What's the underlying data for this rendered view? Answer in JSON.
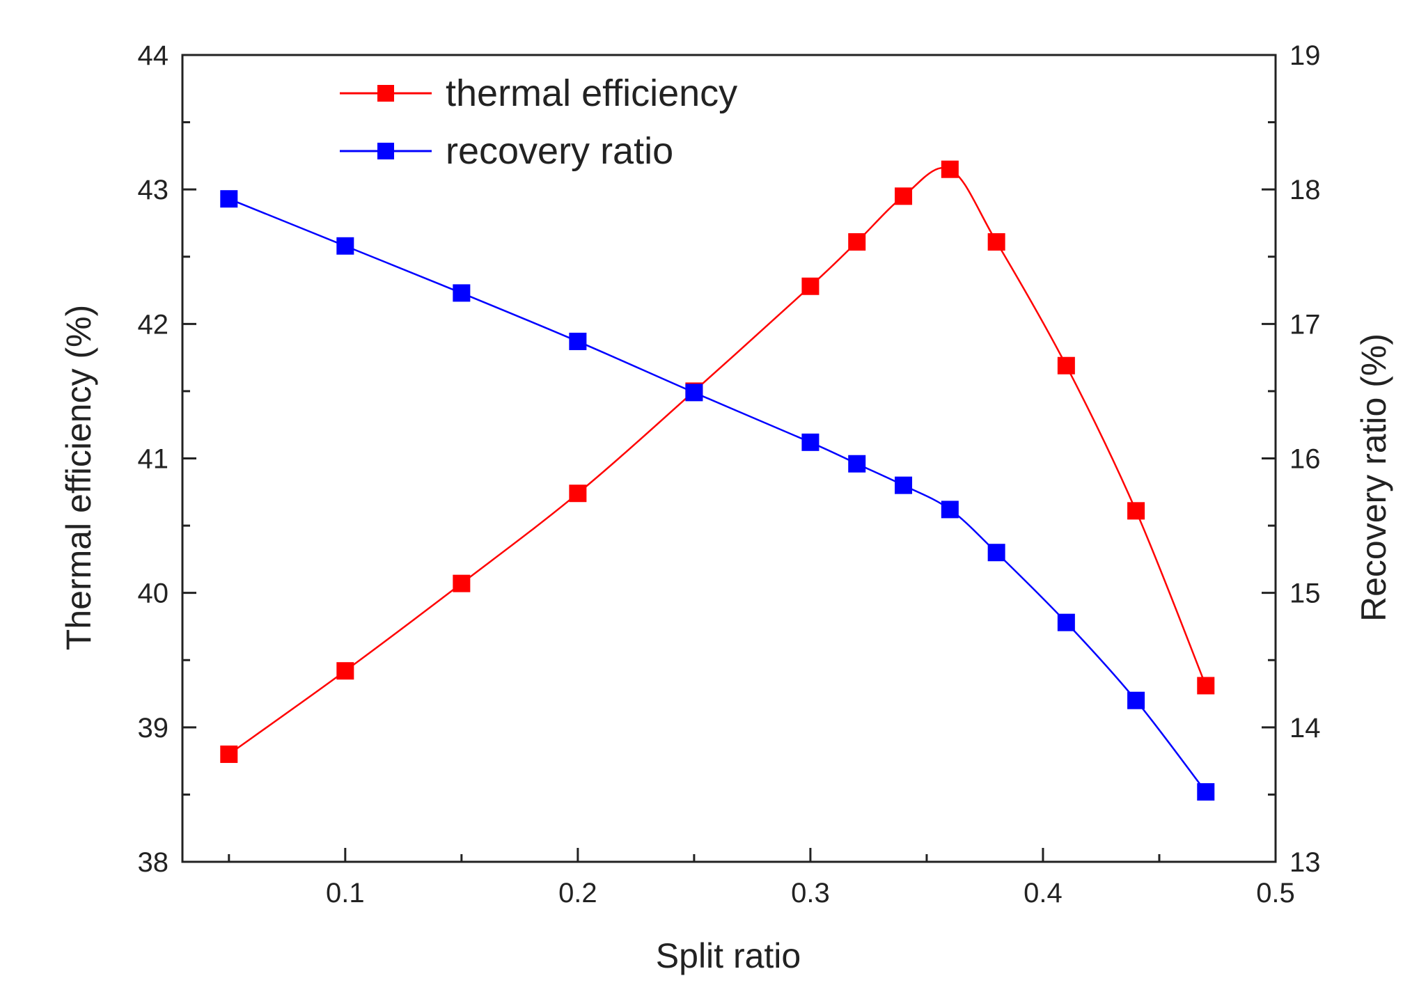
{
  "chart_data": {
    "type": "line",
    "xlabel": "Split ratio",
    "xlim": [
      0.03,
      0.5
    ],
    "xticks": [
      0.1,
      0.2,
      0.3,
      0.4,
      0.5
    ],
    "xtick_labels": [
      "0.1",
      "0.2",
      "0.3",
      "0.4",
      "0.5"
    ],
    "y_left": {
      "label": "Thermal efficiency (%)",
      "ylim": [
        38,
        44
      ],
      "ticks": [
        38,
        39,
        40,
        41,
        42,
        43,
        44
      ],
      "tick_labels": [
        "38",
        "39",
        "40",
        "41",
        "42",
        "43",
        "44"
      ]
    },
    "y_right": {
      "label": "Recovery ratio (%)",
      "ylim": [
        13,
        19
      ],
      "ticks": [
        13,
        14,
        15,
        16,
        17,
        18,
        19
      ],
      "tick_labels": [
        "13",
        "14",
        "15",
        "16",
        "17",
        "18",
        "19"
      ]
    },
    "series": [
      {
        "name": "thermal efficiency",
        "axis": "left",
        "color": "#ff0000",
        "x": [
          0.05,
          0.1,
          0.15,
          0.2,
          0.25,
          0.3,
          0.32,
          0.34,
          0.36,
          0.38,
          0.41,
          0.44,
          0.47
        ],
        "values": [
          38.8,
          39.42,
          40.07,
          40.74,
          41.5,
          42.28,
          42.61,
          42.95,
          43.15,
          42.61,
          41.69,
          40.61,
          39.31
        ]
      },
      {
        "name": "recovery ratio",
        "axis": "right",
        "color": "#0000ff",
        "x": [
          0.05,
          0.1,
          0.15,
          0.2,
          0.25,
          0.3,
          0.32,
          0.34,
          0.36,
          0.38,
          0.41,
          0.44,
          0.47
        ],
        "values": [
          17.93,
          17.58,
          17.23,
          16.87,
          16.49,
          16.12,
          15.96,
          15.8,
          15.62,
          15.3,
          14.78,
          14.2,
          13.52
        ]
      }
    ],
    "legend": {
      "position": "top-left-center"
    }
  }
}
